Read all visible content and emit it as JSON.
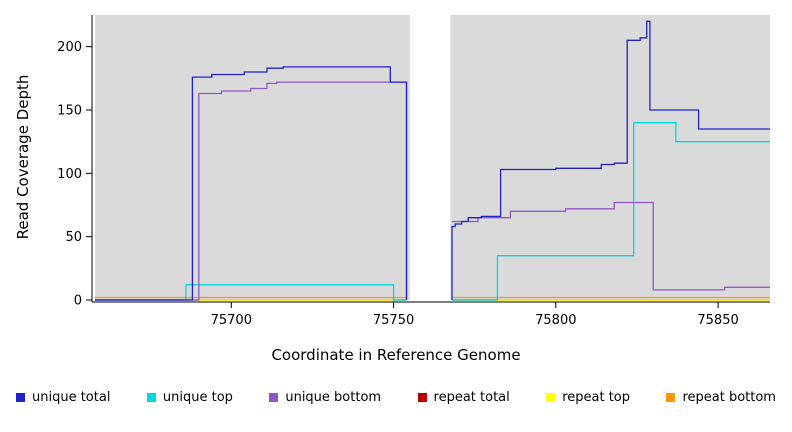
{
  "chart_data": {
    "type": "line",
    "title": "",
    "xlabel": "Coordinate in Reference Genome",
    "ylabel": "Read Coverage Depth",
    "xlim": [
      75658,
      75866
    ],
    "ylim": [
      0,
      225
    ],
    "xticks": [
      75700,
      75750,
      75800,
      75850
    ],
    "yticks": [
      0,
      50,
      100,
      150,
      200
    ],
    "panel_bg": "#dadada",
    "gap_x": [
      75755,
      75767.5
    ],
    "grid": false,
    "legend_position": "bottom",
    "series": [
      {
        "name": "repeat total",
        "color": "#bb0000",
        "segments": [
          [
            [
              75658,
              0
            ],
            [
              75754,
              0
            ]
          ],
          [
            [
              75768,
              0
            ],
            [
              75866,
              0
            ]
          ]
        ]
      },
      {
        "name": "repeat top",
        "color": "#ffff00",
        "segments": [
          [
            [
              75658,
              0
            ],
            [
              75754,
              0
            ]
          ],
          [
            [
              75768,
              0
            ],
            [
              75866,
              0
            ]
          ]
        ]
      },
      {
        "name": "repeat bottom",
        "color": "#ff9900",
        "segments": [
          [
            [
              75658,
              2
            ],
            [
              75754,
              2
            ]
          ],
          [
            [
              75768,
              2
            ],
            [
              75866,
              2
            ]
          ]
        ]
      },
      {
        "name": "unique top",
        "color": "#00d8d8",
        "segments": [
          [
            [
              75658,
              0
            ],
            [
              75686,
              0
            ],
            [
              75686,
              12
            ],
            [
              75750,
              12
            ],
            [
              75750,
              0
            ],
            [
              75754,
              0
            ]
          ],
          [
            [
              75768,
              0
            ],
            [
              75782,
              0
            ],
            [
              75782,
              35
            ],
            [
              75824,
              35
            ],
            [
              75824,
              140
            ],
            [
              75837,
              140
            ],
            [
              75837,
              125
            ],
            [
              75866,
              125
            ]
          ]
        ]
      },
      {
        "name": "unique bottom",
        "color": "#9355cb",
        "segments": [
          [
            [
              75658,
              0
            ],
            [
              75690,
              0
            ],
            [
              75690,
              163
            ],
            [
              75697,
              163
            ],
            [
              75697,
              165
            ],
            [
              75706,
              165
            ],
            [
              75706,
              167
            ],
            [
              75711,
              167
            ],
            [
              75711,
              171
            ],
            [
              75714,
              171
            ],
            [
              75714,
              172
            ],
            [
              75754,
              172
            ],
            [
              75754,
              0
            ]
          ],
          [
            [
              75768,
              62
            ],
            [
              75776,
              62
            ],
            [
              75776,
              65
            ],
            [
              75786,
              65
            ],
            [
              75786,
              70
            ],
            [
              75803,
              70
            ],
            [
              75803,
              72
            ],
            [
              75818,
              72
            ],
            [
              75818,
              77
            ],
            [
              75830,
              77
            ],
            [
              75830,
              8
            ],
            [
              75852,
              8
            ],
            [
              75852,
              10
            ],
            [
              75866,
              10
            ]
          ]
        ]
      },
      {
        "name": "unique total",
        "color": "#2121cc",
        "segments": [
          [
            [
              75658,
              0
            ],
            [
              75688,
              0
            ],
            [
              75688,
              176
            ],
            [
              75694,
              176
            ],
            [
              75694,
              178
            ],
            [
              75704,
              178
            ],
            [
              75704,
              180
            ],
            [
              75711,
              180
            ],
            [
              75711,
              183
            ],
            [
              75716,
              183
            ],
            [
              75716,
              184
            ],
            [
              75749,
              184
            ],
            [
              75749,
              172
            ],
            [
              75754,
              172
            ],
            [
              75754,
              0
            ]
          ],
          [
            [
              75768,
              0
            ],
            [
              75768,
              58
            ],
            [
              75769,
              58
            ],
            [
              75769,
              60
            ],
            [
              75771,
              60
            ],
            [
              75771,
              62
            ],
            [
              75773,
              62
            ],
            [
              75773,
              65
            ],
            [
              75777,
              65
            ],
            [
              75777,
              66
            ],
            [
              75783,
              66
            ],
            [
              75783,
              103
            ],
            [
              75800,
              103
            ],
            [
              75800,
              104
            ],
            [
              75814,
              104
            ],
            [
              75814,
              107
            ],
            [
              75818,
              107
            ],
            [
              75818,
              108
            ],
            [
              75822,
              108
            ],
            [
              75822,
              205
            ],
            [
              75826,
              205
            ],
            [
              75826,
              207
            ],
            [
              75828,
              207
            ],
            [
              75828,
              220
            ],
            [
              75829,
              220
            ],
            [
              75829,
              150
            ],
            [
              75844,
              150
            ],
            [
              75844,
              135
            ],
            [
              75866,
              135
            ]
          ]
        ]
      }
    ],
    "legend_order": [
      "unique total",
      "unique top",
      "unique bottom",
      "repeat total",
      "repeat top",
      "repeat bottom"
    ]
  }
}
